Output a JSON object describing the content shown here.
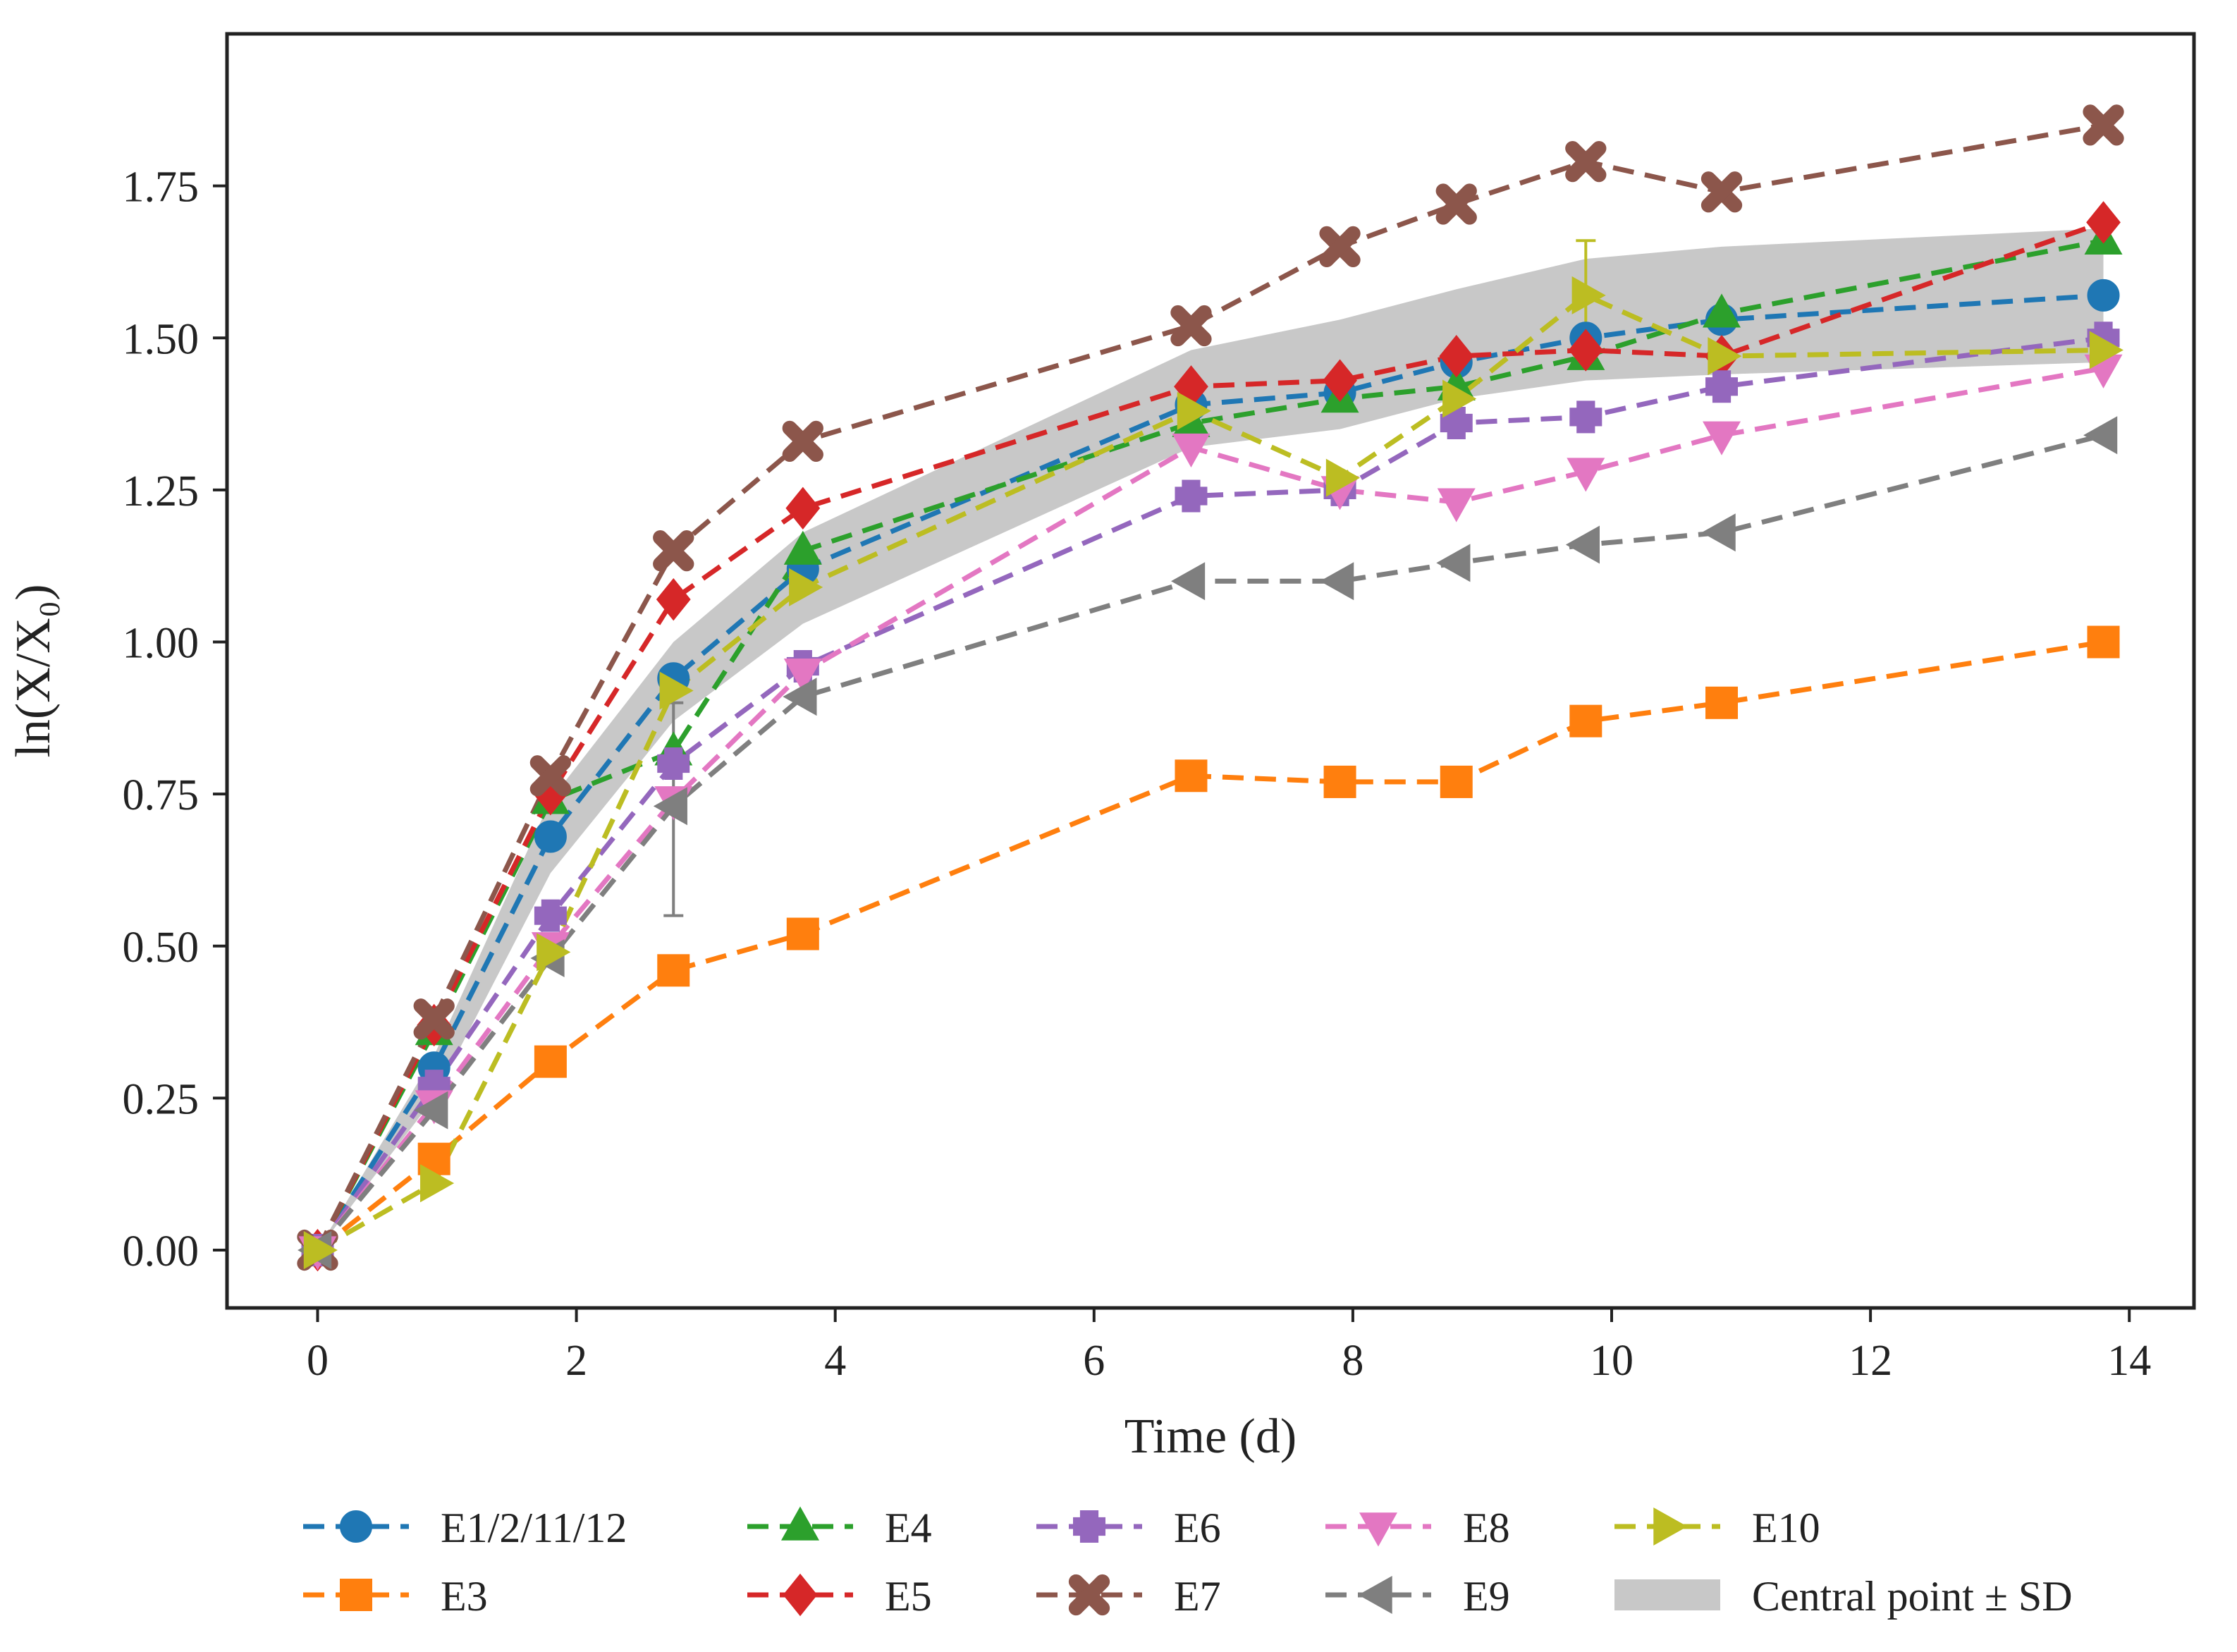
{
  "chart_data": {
    "type": "line",
    "xlabel": "Time (d)",
    "ylabel": "ln(X/X₀)",
    "xlim": [
      -0.7,
      14.5
    ],
    "ylim": [
      -0.095,
      2.0
    ],
    "xticks": [
      0,
      2,
      4,
      6,
      8,
      10,
      12,
      14
    ],
    "yticks": [
      0.0,
      0.25,
      0.5,
      0.75,
      1.0,
      1.25,
      1.5,
      1.75
    ],
    "xtick_labels": [
      "0",
      "2",
      "4",
      "6",
      "8",
      "10",
      "12",
      "14"
    ],
    "ytick_labels": [
      "0.00",
      "0.25",
      "0.50",
      "0.75",
      "1.00",
      "1.25",
      "1.50",
      "1.75"
    ],
    "grid": false,
    "legend_position": "bottom",
    "x": [
      0,
      0.9,
      1.8,
      2.75,
      3.75,
      6.75,
      7.9,
      8.8,
      9.8,
      10.85,
      13.8
    ],
    "band": {
      "name": "Central point ± SD",
      "color": "#c8c8c8",
      "lower": [
        0,
        0.25,
        0.62,
        0.87,
        1.03,
        1.32,
        1.35,
        1.4,
        1.43,
        1.44,
        1.46
      ],
      "upper": [
        0,
        0.32,
        0.74,
        1.0,
        1.18,
        1.48,
        1.53,
        1.58,
        1.63,
        1.65,
        1.68
      ]
    },
    "error_bars": [
      {
        "series": "E9",
        "x": 2.75,
        "y": 0.73,
        "low": 0.55,
        "high": 0.9
      },
      {
        "series": "E10",
        "x": 9.8,
        "y": 1.57,
        "low": 1.48,
        "high": 1.66
      }
    ],
    "series": [
      {
        "name": "E1/2/11/12",
        "color": "#1f77b4",
        "marker": "circle",
        "values": [
          0,
          0.3,
          0.68,
          0.94,
          1.12,
          1.39,
          1.41,
          1.46,
          1.5,
          1.53,
          1.57
        ]
      },
      {
        "name": "E3",
        "color": "#ff7f0e",
        "marker": "square",
        "values": [
          0,
          0.15,
          0.31,
          0.46,
          0.52,
          0.78,
          0.77,
          0.77,
          0.87,
          0.9,
          1.0
        ]
      },
      {
        "name": "E4",
        "color": "#2ca02c",
        "marker": "triangle-up",
        "values": [
          0,
          0.36,
          0.74,
          0.82,
          1.15,
          1.36,
          1.4,
          1.42,
          1.47,
          1.54,
          1.66
        ]
      },
      {
        "name": "E5",
        "color": "#d62728",
        "marker": "diamond",
        "values": [
          0,
          0.37,
          0.75,
          1.07,
          1.22,
          1.42,
          1.43,
          1.47,
          1.48,
          1.47,
          1.69
        ]
      },
      {
        "name": "E6",
        "color": "#9467bd",
        "marker": "plus",
        "values": [
          0,
          0.27,
          0.55,
          0.8,
          0.96,
          1.24,
          1.25,
          1.36,
          1.37,
          1.42,
          1.5
        ]
      },
      {
        "name": "E7",
        "color": "#8c564b",
        "marker": "x",
        "values": [
          0,
          0.38,
          0.78,
          1.15,
          1.33,
          1.52,
          1.65,
          1.72,
          1.79,
          1.74,
          1.85
        ]
      },
      {
        "name": "E8",
        "color": "#e377c2",
        "marker": "triangle-down",
        "values": [
          0,
          0.24,
          0.5,
          0.74,
          0.95,
          1.32,
          1.25,
          1.23,
          1.28,
          1.34,
          1.45
        ]
      },
      {
        "name": "E9",
        "color": "#7f7f7f",
        "marker": "triangle-left",
        "values": [
          0,
          0.23,
          0.48,
          0.73,
          0.91,
          1.1,
          1.1,
          1.13,
          1.16,
          1.18,
          1.34
        ]
      },
      {
        "name": "E10",
        "color": "#bcbd22",
        "marker": "triangle-right",
        "values": [
          0,
          0.11,
          0.49,
          0.92,
          1.09,
          1.38,
          1.27,
          1.4,
          1.57,
          1.47,
          1.48
        ]
      }
    ]
  }
}
